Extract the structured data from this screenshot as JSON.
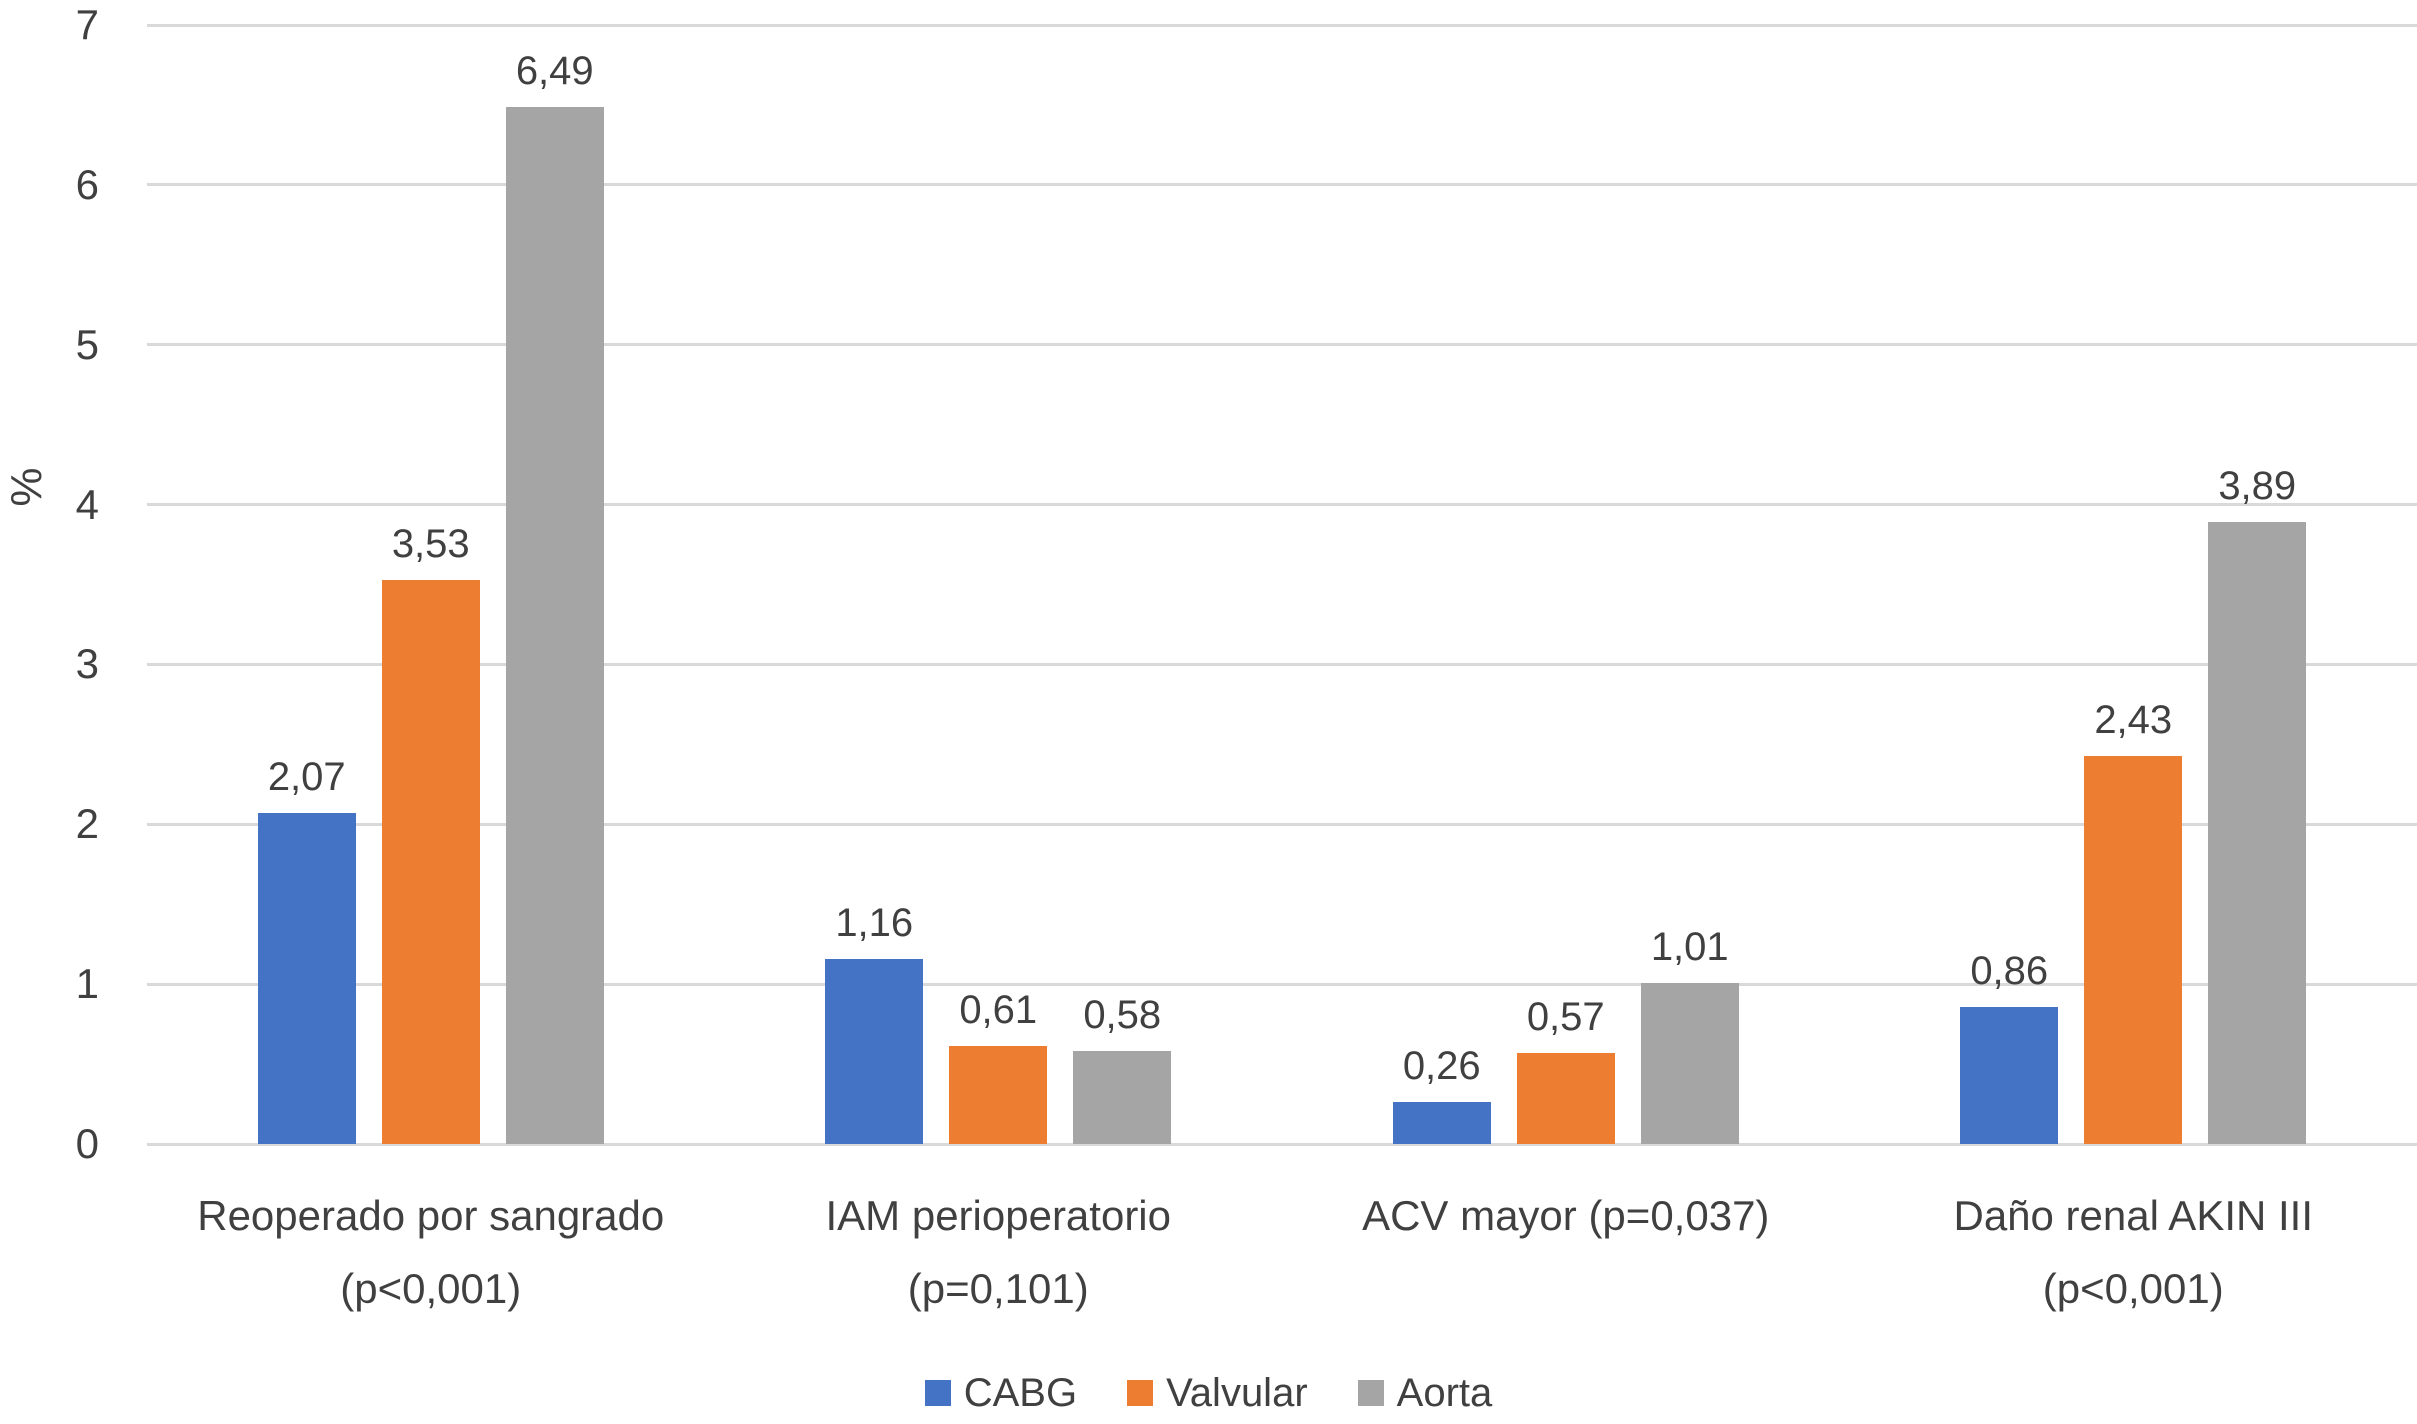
{
  "chart_data": {
    "type": "bar",
    "title": "",
    "xlabel": "",
    "ylabel": "%",
    "ylim": [
      0,
      7
    ],
    "yticks": [
      0,
      1,
      2,
      3,
      4,
      5,
      6,
      7
    ],
    "grid": true,
    "legend_position": "bottom",
    "categories": [
      "Reoperado por sangrado\n(p<0,001)",
      "IAM perioperatorio\n(p=0,101)",
      "ACV mayor (p=0,037)",
      "Daño renal AKIN III\n(p<0,001)"
    ],
    "series": [
      {
        "name": "CABG",
        "color": "#4472C4",
        "values": [
          2.07,
          1.16,
          0.26,
          0.86
        ]
      },
      {
        "name": "Valvular",
        "color": "#ED7D31",
        "values": [
          3.53,
          0.61,
          0.57,
          2.43
        ]
      },
      {
        "name": "Aorta",
        "color": "#A5A5A5",
        "values": [
          6.49,
          0.58,
          1.01,
          3.89
        ]
      }
    ],
    "data_labels": [
      [
        "2,07",
        "1,16",
        "0,26",
        "0,86"
      ],
      [
        "3,53",
        "0,61",
        "0,57",
        "2,43"
      ],
      [
        "6,49",
        "0,58",
        "1,01",
        "3,89"
      ]
    ],
    "colors": {
      "gridline": "#D9D9D9",
      "text": "#404040",
      "background": "#FFFFFF"
    }
  }
}
